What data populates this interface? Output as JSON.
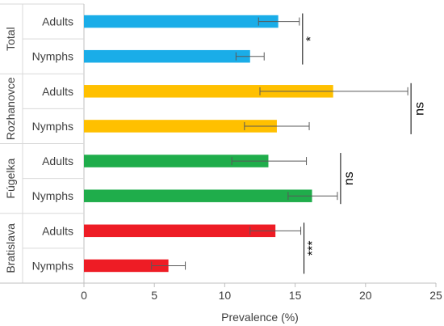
{
  "chart_data": {
    "type": "bar",
    "orientation": "horizontal",
    "xlabel": "Prevalence (%)",
    "xlim": [
      0,
      25
    ],
    "x_ticks": [
      "0",
      "5",
      "10",
      "15",
      "20",
      "25"
    ],
    "groups": [
      {
        "name": "Total",
        "color": "#1AADE8",
        "bars": [
          {
            "label": "Adults",
            "value": 13.8,
            "err_low": 12.4,
            "err_high": 15.3
          },
          {
            "label": "Nymphs",
            "value": 11.8,
            "err_low": 10.8,
            "err_high": 12.8
          }
        ],
        "significance": "*"
      },
      {
        "name": "Rozhanovce",
        "color": "#FFC000",
        "bars": [
          {
            "label": "Adults",
            "value": 17.7,
            "err_low": 12.5,
            "err_high": 23.0
          },
          {
            "label": "Nymphs",
            "value": 13.7,
            "err_low": 11.4,
            "err_high": 16.0
          }
        ],
        "significance": "ns"
      },
      {
        "name": "Fúgelka",
        "color": "#1FAD4B",
        "bars": [
          {
            "label": "Adults",
            "value": 13.1,
            "err_low": 10.5,
            "err_high": 15.8
          },
          {
            "label": "Nymphs",
            "value": 16.2,
            "err_low": 14.5,
            "err_high": 18.0
          }
        ],
        "significance": "ns"
      },
      {
        "name": "Bratislava",
        "color": "#EE1C25",
        "bars": [
          {
            "label": "Adults",
            "value": 13.6,
            "err_low": 11.8,
            "err_high": 15.4
          },
          {
            "label": "Nymphs",
            "value": 6.0,
            "err_low": 4.8,
            "err_high": 7.2
          }
        ],
        "significance": "***"
      }
    ]
  }
}
